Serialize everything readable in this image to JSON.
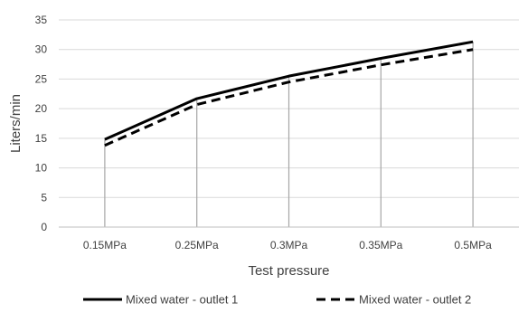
{
  "chart_data": {
    "type": "line",
    "title": "",
    "xlabel": "Test pressure",
    "ylabel": "Liters/min",
    "categories": [
      "0.15MPa",
      "0.25MPa",
      "0.3MPa",
      "0.35MPa",
      "0.5MPa"
    ],
    "ylim": [
      0,
      35
    ],
    "yticks": [
      0,
      5,
      10,
      15,
      20,
      25,
      30,
      35
    ],
    "grid": "horizontal",
    "drop_lines": true,
    "legend_position": "bottom",
    "series": [
      {
        "name": "Mixed water - outlet 1",
        "values": [
          14.8,
          21.7,
          25.5,
          28.5,
          31.3
        ],
        "color": "#000000",
        "style": "solid"
      },
      {
        "name": "Mixed water - outlet 2",
        "values": [
          13.8,
          20.7,
          24.5,
          27.4,
          30.0
        ],
        "color": "#000000",
        "style": "dashed"
      }
    ],
    "colors": {
      "grid": "#d9d9d9",
      "drop_line": "#a6a6a6",
      "axis": "#bfbfbf",
      "text": "#404040"
    }
  }
}
